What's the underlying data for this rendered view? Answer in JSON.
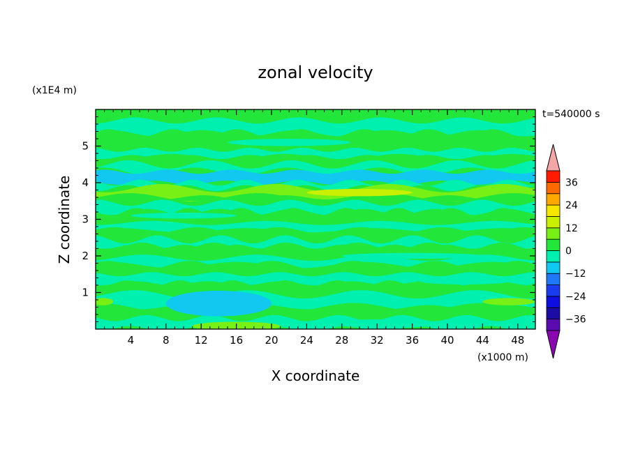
{
  "chart_data": {
    "type": "heatmap",
    "title": "zonal velocity",
    "xlabel": "X coordinate",
    "ylabel": "Z coordinate",
    "x_unit": "(x1000 m)",
    "y_unit": "(x1E4 m)",
    "time_label": "t=540000 s",
    "xlim": [
      0,
      50
    ],
    "ylim": [
      0,
      6
    ],
    "x_ticks": [
      4,
      8,
      12,
      16,
      20,
      24,
      28,
      32,
      36,
      40,
      44,
      48
    ],
    "y_ticks": [
      1,
      2,
      3,
      4,
      5
    ],
    "colorbar": {
      "range": [
        -42,
        42
      ],
      "labels": [
        36,
        24,
        12,
        0,
        -12,
        -24,
        -36
      ],
      "extend": "both",
      "levels": [
        {
          "from": -42,
          "to": -36,
          "color": "#5a0cb0"
        },
        {
          "from": -36,
          "to": -30,
          "color": "#1c0ca6"
        },
        {
          "from": -30,
          "to": -24,
          "color": "#0e0ee0"
        },
        {
          "from": -24,
          "to": -18,
          "color": "#1a3cf0"
        },
        {
          "from": -18,
          "to": -12,
          "color": "#1e78f8"
        },
        {
          "from": -12,
          "to": -6,
          "color": "#10c8f0"
        },
        {
          "from": -6,
          "to": 0,
          "color": "#00f0b0"
        },
        {
          "from": 0,
          "to": 6,
          "color": "#22e63a"
        },
        {
          "from": 6,
          "to": 12,
          "color": "#78f016"
        },
        {
          "from": 12,
          "to": 18,
          "color": "#c8f000"
        },
        {
          "from": 18,
          "to": 24,
          "color": "#f6e600"
        },
        {
          "from": 24,
          "to": 30,
          "color": "#ffa800"
        },
        {
          "from": 30,
          "to": 36,
          "color": "#ff6a00"
        },
        {
          "from": 36,
          "to": 42,
          "color": "#ff1a00"
        }
      ],
      "under_color": "#8a08b0",
      "over_color": "#f4a6a6"
    },
    "bands": [
      {
        "z0": 5.7,
        "z1": 6.0,
        "value": 2
      },
      {
        "z0": 5.35,
        "z1": 5.7,
        "value": -2
      },
      {
        "z0": 4.9,
        "z1": 5.35,
        "value": 2
      },
      {
        "z0": 4.7,
        "z1": 4.9,
        "value": -2
      },
      {
        "z0": 4.5,
        "z1": 4.7,
        "value": 2
      },
      {
        "z0": 4.3,
        "z1": 4.5,
        "value": -3
      },
      {
        "z0": 4.0,
        "z1": 4.3,
        "value": -7
      },
      {
        "z0": 3.85,
        "z1": 4.0,
        "value": -2
      },
      {
        "z0": 3.6,
        "z1": 3.85,
        "value": 7
      },
      {
        "z0": 3.45,
        "z1": 3.6,
        "value": 2
      },
      {
        "z0": 3.2,
        "z1": 3.45,
        "value": -2
      },
      {
        "z0": 2.9,
        "z1": 3.2,
        "value": 2
      },
      {
        "z0": 2.7,
        "z1": 2.9,
        "value": -2
      },
      {
        "z0": 2.45,
        "z1": 2.7,
        "value": 2
      },
      {
        "z0": 2.25,
        "z1": 2.45,
        "value": -2
      },
      {
        "z0": 1.95,
        "z1": 2.25,
        "value": 2
      },
      {
        "z0": 1.75,
        "z1": 1.95,
        "value": -2
      },
      {
        "z0": 1.5,
        "z1": 1.75,
        "value": 2
      },
      {
        "z0": 1.25,
        "z1": 1.5,
        "value": -2
      },
      {
        "z0": 0.95,
        "z1": 1.25,
        "value": 2
      },
      {
        "z0": 0.6,
        "z1": 0.95,
        "value": -2
      },
      {
        "z0": 0.3,
        "z1": 0.6,
        "value": 2
      },
      {
        "z0": 0.0,
        "z1": 0.3,
        "value": -3
      }
    ],
    "patches": [
      {
        "x": 14,
        "z": 0.7,
        "rx": 6,
        "rz": 0.35,
        "value": -7
      },
      {
        "x": 16,
        "z": 0.08,
        "rx": 5,
        "rz": 0.12,
        "value": 8
      },
      {
        "x": 30,
        "z": 3.73,
        "rx": 6,
        "rz": 0.1,
        "value": 14
      },
      {
        "x": 47,
        "z": 0.75,
        "rx": 3,
        "rz": 0.1,
        "value": 7
      },
      {
        "x": 0.8,
        "z": 0.75,
        "rx": 1.2,
        "rz": 0.1,
        "value": 7
      },
      {
        "x": 22,
        "z": 5.1,
        "rx": 7,
        "rz": 0.1,
        "value": -2
      },
      {
        "x": 36,
        "z": 2.0,
        "rx": 8,
        "rz": 0.08,
        "value": -2
      },
      {
        "x": 10,
        "z": 3.1,
        "rx": 6,
        "rz": 0.08,
        "value": -2
      },
      {
        "x": 42,
        "z": 1.3,
        "rx": 5,
        "rz": 0.08,
        "value": -2
      },
      {
        "x": 33,
        "z": 0.15,
        "rx": 6,
        "rz": 0.12,
        "value": -6
      }
    ]
  }
}
